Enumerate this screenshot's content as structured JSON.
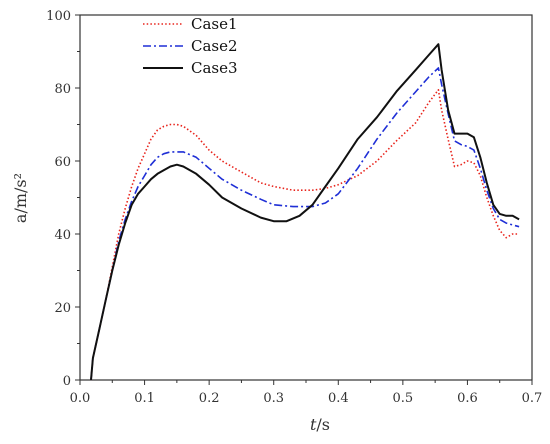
{
  "chart_data": {
    "type": "line",
    "xlabel": "t/s",
    "xlabel_italic": "t",
    "xlabel_unit": "/s",
    "ylabel": "a/m/s²",
    "xlim": [
      0.0,
      0.7
    ],
    "ylim": [
      0,
      100
    ],
    "x_ticks": [
      "0.0",
      "0.1",
      "0.2",
      "0.3",
      "0.4",
      "0.5",
      "0.6",
      "0.7"
    ],
    "y_ticks": [
      "0",
      "20",
      "40",
      "60",
      "80",
      "100"
    ],
    "grid": false,
    "legend_position": "top-left",
    "series": [
      {
        "name": "Case1",
        "color": "#e8241c",
        "style": "dotted",
        "points": [
          [
            0.017,
            0
          ],
          [
            0.02,
            6
          ],
          [
            0.03,
            14
          ],
          [
            0.04,
            22
          ],
          [
            0.05,
            31
          ],
          [
            0.06,
            40
          ],
          [
            0.07,
            47
          ],
          [
            0.08,
            53
          ],
          [
            0.09,
            58
          ],
          [
            0.1,
            62
          ],
          [
            0.11,
            66
          ],
          [
            0.12,
            68.5
          ],
          [
            0.13,
            69.5
          ],
          [
            0.14,
            70
          ],
          [
            0.15,
            70
          ],
          [
            0.16,
            69.5
          ],
          [
            0.18,
            67
          ],
          [
            0.2,
            63
          ],
          [
            0.22,
            60
          ],
          [
            0.25,
            57
          ],
          [
            0.28,
            54
          ],
          [
            0.3,
            53
          ],
          [
            0.33,
            52
          ],
          [
            0.36,
            52
          ],
          [
            0.38,
            52.5
          ],
          [
            0.4,
            53.5
          ],
          [
            0.43,
            56
          ],
          [
            0.46,
            60
          ],
          [
            0.49,
            65.5
          ],
          [
            0.52,
            70.5
          ],
          [
            0.54,
            76
          ],
          [
            0.555,
            79.5
          ],
          [
            0.56,
            74
          ],
          [
            0.57,
            66
          ],
          [
            0.58,
            58.5
          ],
          [
            0.59,
            59
          ],
          [
            0.6,
            60
          ],
          [
            0.61,
            59.5
          ],
          [
            0.62,
            56
          ],
          [
            0.63,
            50
          ],
          [
            0.64,
            45
          ],
          [
            0.65,
            41
          ],
          [
            0.66,
            39
          ],
          [
            0.67,
            40
          ],
          [
            0.68,
            40
          ]
        ]
      },
      {
        "name": "Case2",
        "color": "#1f2fd6",
        "style": "dashdot",
        "points": [
          [
            0.017,
            0
          ],
          [
            0.02,
            6
          ],
          [
            0.03,
            14
          ],
          [
            0.04,
            22
          ],
          [
            0.05,
            30
          ],
          [
            0.06,
            38
          ],
          [
            0.07,
            44
          ],
          [
            0.08,
            49
          ],
          [
            0.09,
            53
          ],
          [
            0.1,
            56
          ],
          [
            0.11,
            59
          ],
          [
            0.12,
            61
          ],
          [
            0.13,
            62
          ],
          [
            0.14,
            62.5
          ],
          [
            0.15,
            62.5
          ],
          [
            0.16,
            62.5
          ],
          [
            0.18,
            61
          ],
          [
            0.2,
            58
          ],
          [
            0.22,
            55
          ],
          [
            0.25,
            52
          ],
          [
            0.28,
            49.5
          ],
          [
            0.3,
            48
          ],
          [
            0.33,
            47.5
          ],
          [
            0.36,
            47.5
          ],
          [
            0.38,
            48.5
          ],
          [
            0.4,
            51
          ],
          [
            0.43,
            58
          ],
          [
            0.46,
            66
          ],
          [
            0.49,
            73
          ],
          [
            0.52,
            79
          ],
          [
            0.54,
            83
          ],
          [
            0.555,
            85.5
          ],
          [
            0.56,
            81
          ],
          [
            0.57,
            73
          ],
          [
            0.58,
            65.5
          ],
          [
            0.59,
            64.5
          ],
          [
            0.6,
            64
          ],
          [
            0.61,
            63
          ],
          [
            0.62,
            58
          ],
          [
            0.63,
            52
          ],
          [
            0.64,
            47
          ],
          [
            0.65,
            44
          ],
          [
            0.66,
            43
          ],
          [
            0.67,
            42.5
          ],
          [
            0.68,
            42
          ]
        ]
      },
      {
        "name": "Case3",
        "color": "#111111",
        "style": "solid",
        "points": [
          [
            0.017,
            0
          ],
          [
            0.02,
            6
          ],
          [
            0.03,
            14
          ],
          [
            0.04,
            22
          ],
          [
            0.05,
            30
          ],
          [
            0.06,
            37
          ],
          [
            0.07,
            43
          ],
          [
            0.08,
            48
          ],
          [
            0.09,
            51
          ],
          [
            0.1,
            53
          ],
          [
            0.11,
            55
          ],
          [
            0.12,
            56.5
          ],
          [
            0.13,
            57.5
          ],
          [
            0.14,
            58.5
          ],
          [
            0.15,
            59
          ],
          [
            0.16,
            58.5
          ],
          [
            0.18,
            56.5
          ],
          [
            0.2,
            53.5
          ],
          [
            0.22,
            50
          ],
          [
            0.25,
            47
          ],
          [
            0.28,
            44.5
          ],
          [
            0.3,
            43.5
          ],
          [
            0.32,
            43.5
          ],
          [
            0.34,
            45
          ],
          [
            0.36,
            48
          ],
          [
            0.38,
            53
          ],
          [
            0.4,
            58
          ],
          [
            0.43,
            66
          ],
          [
            0.46,
            72
          ],
          [
            0.49,
            79
          ],
          [
            0.52,
            85
          ],
          [
            0.54,
            89
          ],
          [
            0.555,
            92
          ],
          [
            0.56,
            85
          ],
          [
            0.57,
            74
          ],
          [
            0.58,
            67.5
          ],
          [
            0.59,
            67.5
          ],
          [
            0.6,
            67.5
          ],
          [
            0.61,
            66.5
          ],
          [
            0.62,
            61
          ],
          [
            0.63,
            54
          ],
          [
            0.64,
            48
          ],
          [
            0.65,
            45.5
          ],
          [
            0.66,
            45
          ],
          [
            0.67,
            45
          ],
          [
            0.68,
            44
          ]
        ]
      }
    ]
  }
}
